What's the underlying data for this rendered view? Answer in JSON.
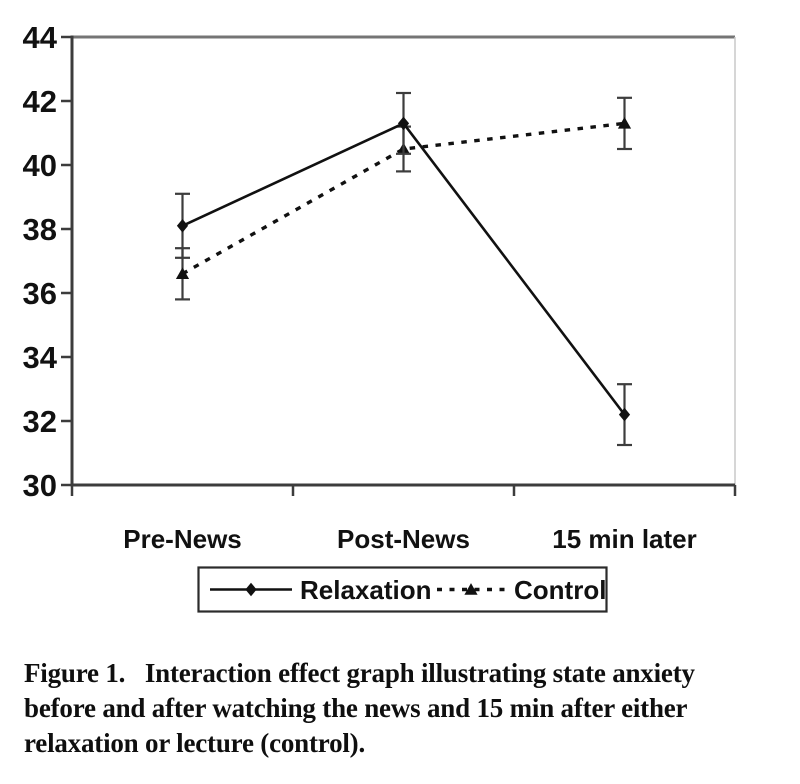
{
  "chart_data": {
    "type": "line",
    "categories": [
      "Pre-News",
      "Post-News",
      "15 min later"
    ],
    "series": [
      {
        "name": "Relaxation",
        "marker": "diamond",
        "line_style": "solid",
        "values": [
          38.1,
          41.3,
          32.2
        ],
        "error_bars": [
          1.0,
          0.95,
          0.95
        ]
      },
      {
        "name": "Control",
        "marker": "triangle",
        "line_style": "dashed",
        "values": [
          36.6,
          40.5,
          41.3
        ],
        "error_bars": [
          0.8,
          0.7,
          0.8
        ]
      }
    ],
    "ylim": [
      30,
      44
    ],
    "yticks": [
      30,
      32,
      34,
      36,
      38,
      40,
      42,
      44
    ],
    "grid": false,
    "legend": {
      "position": "bottom-center",
      "boxed": true,
      "entries": [
        "Relaxation",
        "Control"
      ]
    },
    "colors": {
      "data": "#111111",
      "error_bar": "#3d3d3d",
      "axis": "#3c3c3c",
      "frame_top": "#757575",
      "frame_right": "#c9c9c9",
      "text": "#111111",
      "background": "#ffffff",
      "legend_border": "#2b2b2b"
    }
  },
  "caption": {
    "lines": [
      "Figure 1.   Interaction effect graph illustrating state anxiety",
      "before and after watching the news and 15 min after either",
      "relaxation or lecture (control)."
    ]
  }
}
